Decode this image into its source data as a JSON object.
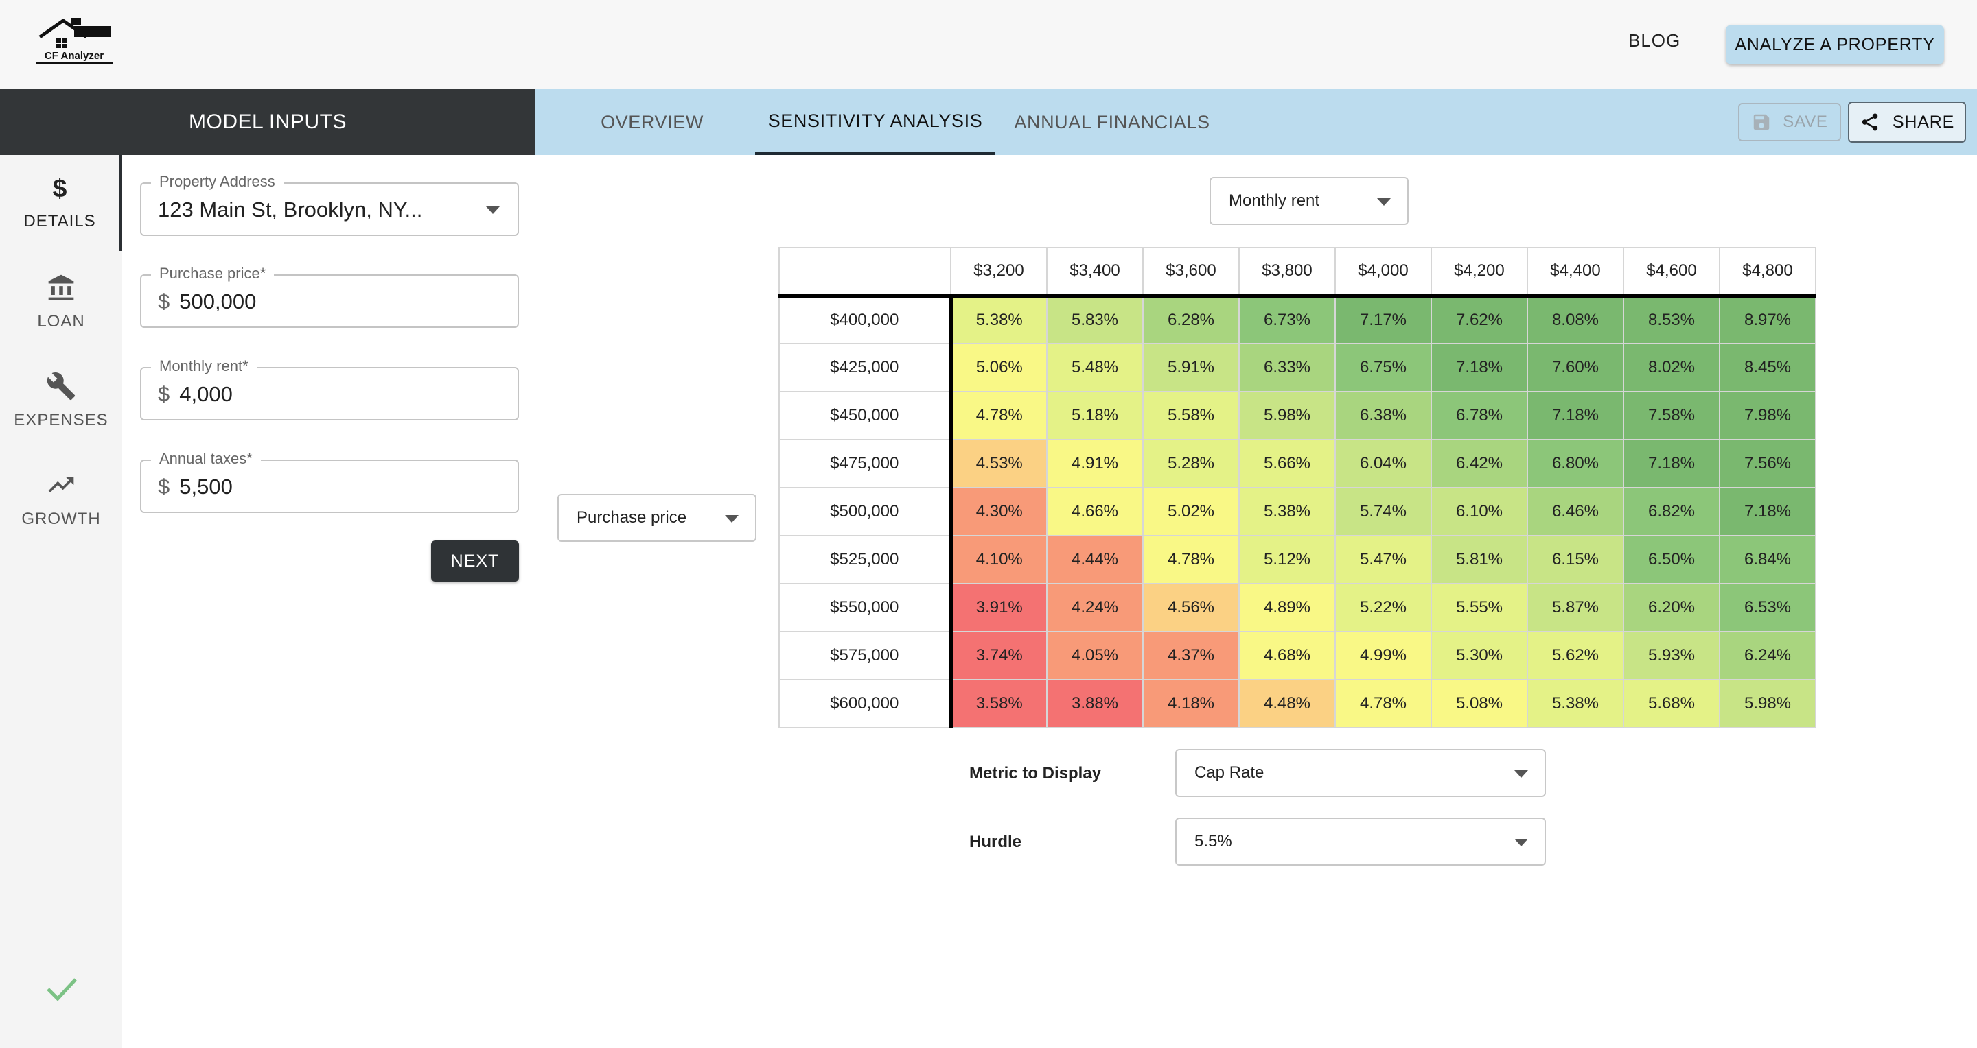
{
  "app": {
    "logo_text": "CF Analyzer"
  },
  "header": {
    "blog_label": "BLOG",
    "analyze_label": "ANALYZE A PROPERTY"
  },
  "panel": {
    "title": "MODEL INPUTS"
  },
  "tabs": [
    {
      "label": "OVERVIEW",
      "active": false
    },
    {
      "label": "SENSITIVITY ANALYSIS",
      "active": true
    },
    {
      "label": "ANNUAL FINANCIALS",
      "active": false
    }
  ],
  "actions": {
    "save_label": "SAVE",
    "share_label": "SHARE"
  },
  "sidenav": [
    {
      "label": "DETAILS",
      "icon": "dollar-icon",
      "active": true
    },
    {
      "label": "LOAN",
      "icon": "bank-icon",
      "active": false
    },
    {
      "label": "EXPENSES",
      "icon": "wrench-icon",
      "active": false
    },
    {
      "label": "GROWTH",
      "icon": "trending-up-icon",
      "active": false
    }
  ],
  "form": {
    "address": {
      "label": "Property Address",
      "value": "123 Main St, Brooklyn, NY..."
    },
    "purchase_price": {
      "label": "Purchase price",
      "required": "*",
      "prefix": "$",
      "value": "500,000"
    },
    "monthly_rent": {
      "label": "Monthly rent",
      "required": "*",
      "prefix": "$",
      "value": "4,000"
    },
    "annual_taxes": {
      "label": "Annual taxes",
      "required": "*",
      "prefix": "$",
      "value": "5,500"
    },
    "next_label": "NEXT"
  },
  "sensitivity": {
    "column_variable": "Monthly rent",
    "row_variable": "Purchase price",
    "columns": [
      "$3,200",
      "$3,400",
      "$3,600",
      "$3,800",
      "$4,000",
      "$4,200",
      "$4,400",
      "$4,600",
      "$4,800"
    ],
    "rows": [
      {
        "label": "$400,000",
        "values": [
          "5.38%",
          "5.83%",
          "6.28%",
          "6.73%",
          "7.17%",
          "7.62%",
          "8.08%",
          "8.53%",
          "8.97%"
        ]
      },
      {
        "label": "$425,000",
        "values": [
          "5.06%",
          "5.48%",
          "5.91%",
          "6.33%",
          "6.75%",
          "7.18%",
          "7.60%",
          "8.02%",
          "8.45%"
        ]
      },
      {
        "label": "$450,000",
        "values": [
          "4.78%",
          "5.18%",
          "5.58%",
          "5.98%",
          "6.38%",
          "6.78%",
          "7.18%",
          "7.58%",
          "7.98%"
        ]
      },
      {
        "label": "$475,000",
        "values": [
          "4.53%",
          "4.91%",
          "5.28%",
          "5.66%",
          "6.04%",
          "6.42%",
          "6.80%",
          "7.18%",
          "7.56%"
        ]
      },
      {
        "label": "$500,000",
        "values": [
          "4.30%",
          "4.66%",
          "5.02%",
          "5.38%",
          "5.74%",
          "6.10%",
          "6.46%",
          "6.82%",
          "7.18%"
        ]
      },
      {
        "label": "$525,000",
        "values": [
          "4.10%",
          "4.44%",
          "4.78%",
          "5.12%",
          "5.47%",
          "5.81%",
          "6.15%",
          "6.50%",
          "6.84%"
        ]
      },
      {
        "label": "$550,000",
        "values": [
          "3.91%",
          "4.24%",
          "4.56%",
          "4.89%",
          "5.22%",
          "5.55%",
          "5.87%",
          "6.20%",
          "6.53%"
        ]
      },
      {
        "label": "$575,000",
        "values": [
          "3.74%",
          "4.05%",
          "4.37%",
          "4.68%",
          "4.99%",
          "5.30%",
          "5.62%",
          "5.93%",
          "6.24%"
        ]
      },
      {
        "label": "$600,000",
        "values": [
          "3.58%",
          "3.88%",
          "4.18%",
          "4.48%",
          "4.78%",
          "5.08%",
          "5.38%",
          "5.68%",
          "5.98%"
        ]
      }
    ],
    "metric_label": "Metric to Display",
    "metric_value": "Cap Rate",
    "hurdle_label": "Hurdle",
    "hurdle_value": "5.5%"
  },
  "colors": {
    "accent_light_blue": "#bcdcee",
    "dark_panel": "#333638",
    "check_green": "#6fbf73",
    "scale": [
      "#f47272",
      "#f89a78",
      "#fbd184",
      "#f9f886",
      "#e4f287",
      "#c8e486",
      "#a9d57f",
      "#8cc679",
      "#7ab86f"
    ]
  }
}
